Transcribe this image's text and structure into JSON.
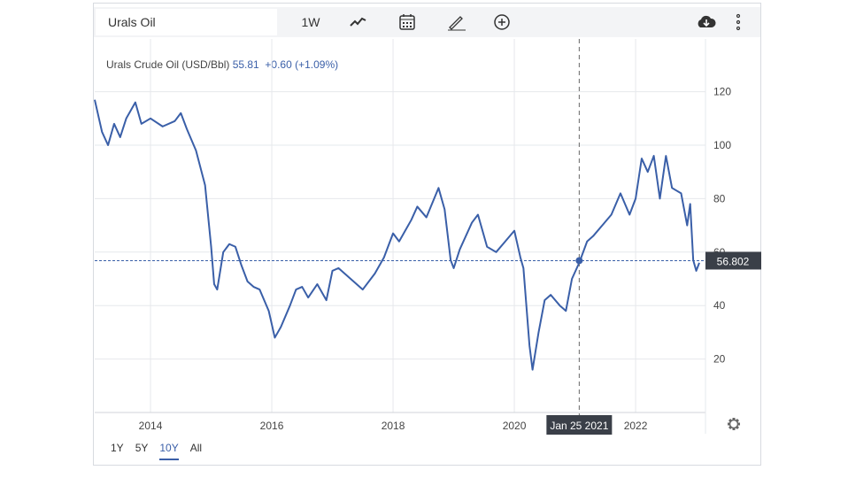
{
  "toolbar": {
    "search_value": "Urals Oil",
    "interval": "1W",
    "icons": [
      "line-chart-icon",
      "calendar-icon",
      "pencil-icon",
      "plus-circle-icon",
      "cloud-download-icon",
      "more-vertical-icon"
    ]
  },
  "legend": {
    "name": "Urals Crude Oil (USD/Bbl)",
    "price": "55.81",
    "change": "+0.60 (+1.09%)"
  },
  "ranges": [
    "1Y",
    "5Y",
    "10Y",
    "All"
  ],
  "active_range": "10Y",
  "crosshair": {
    "date_label": "Jan 25 2021",
    "price_label": "56.802"
  },
  "colors": {
    "line": "#3a5fa8",
    "tag": "#3a3f48"
  },
  "chart_data": {
    "type": "line",
    "title": "Urals Crude Oil (USD/Bbl)",
    "xlabel": "",
    "ylabel": "USD/Bbl",
    "xlim": [
      2013.08,
      2023.05
    ],
    "ylim": [
      0,
      135
    ],
    "x_ticks": [
      "2014",
      "2016",
      "2018",
      "2020",
      "2022"
    ],
    "y_ticks": [
      "20",
      "40",
      "60",
      "80",
      "100",
      "120"
    ],
    "grid": true,
    "x": [
      2013.08,
      2013.15,
      2013.2,
      2013.3,
      2013.4,
      2013.5,
      2013.6,
      2013.75,
      2013.85,
      2014.0,
      2014.2,
      2014.4,
      2014.5,
      2014.6,
      2014.75,
      2014.9,
      2015.0,
      2015.05,
      2015.1,
      2015.2,
      2015.3,
      2015.4,
      2015.5,
      2015.6,
      2015.7,
      2015.8,
      2015.95,
      2016.05,
      2016.15,
      2016.3,
      2016.4,
      2016.5,
      2016.6,
      2016.75,
      2016.9,
      2017.0,
      2017.1,
      2017.3,
      2017.5,
      2017.7,
      2017.85,
      2018.0,
      2018.1,
      2018.3,
      2018.4,
      2018.55,
      2018.75,
      2018.85,
      2018.95,
      2019.0,
      2019.1,
      2019.3,
      2019.4,
      2019.55,
      2019.7,
      2019.85,
      2020.0,
      2020.1,
      2020.15,
      2020.25,
      2020.3,
      2020.4,
      2020.5,
      2020.6,
      2020.75,
      2020.85,
      2020.95,
      2021.07,
      2021.2,
      2021.3,
      2021.45,
      2021.6,
      2021.75,
      2021.9,
      2022.0,
      2022.1,
      2022.2,
      2022.3,
      2022.4,
      2022.5,
      2022.6,
      2022.75,
      2022.85,
      2022.9,
      2022.95,
      2023.0,
      2023.05
    ],
    "values": [
      117,
      110,
      105,
      100,
      108,
      103,
      110,
      116,
      108,
      110,
      107,
      109,
      112,
      106,
      98,
      85,
      62,
      48,
      46,
      60,
      63,
      62,
      55,
      49,
      47,
      46,
      38,
      28,
      32,
      40,
      46,
      47,
      43,
      48,
      42,
      53,
      54,
      50,
      46,
      52,
      58,
      67,
      64,
      72,
      77,
      73,
      84,
      76,
      57,
      54,
      61,
      71,
      74,
      62,
      60,
      64,
      68,
      58,
      54,
      25,
      16,
      30,
      42,
      44,
      40,
      38,
      50,
      56,
      64,
      66,
      70,
      74,
      82,
      74,
      80,
      95,
      90,
      96,
      80,
      96,
      84,
      82,
      70,
      78,
      57,
      53,
      56
    ]
  }
}
